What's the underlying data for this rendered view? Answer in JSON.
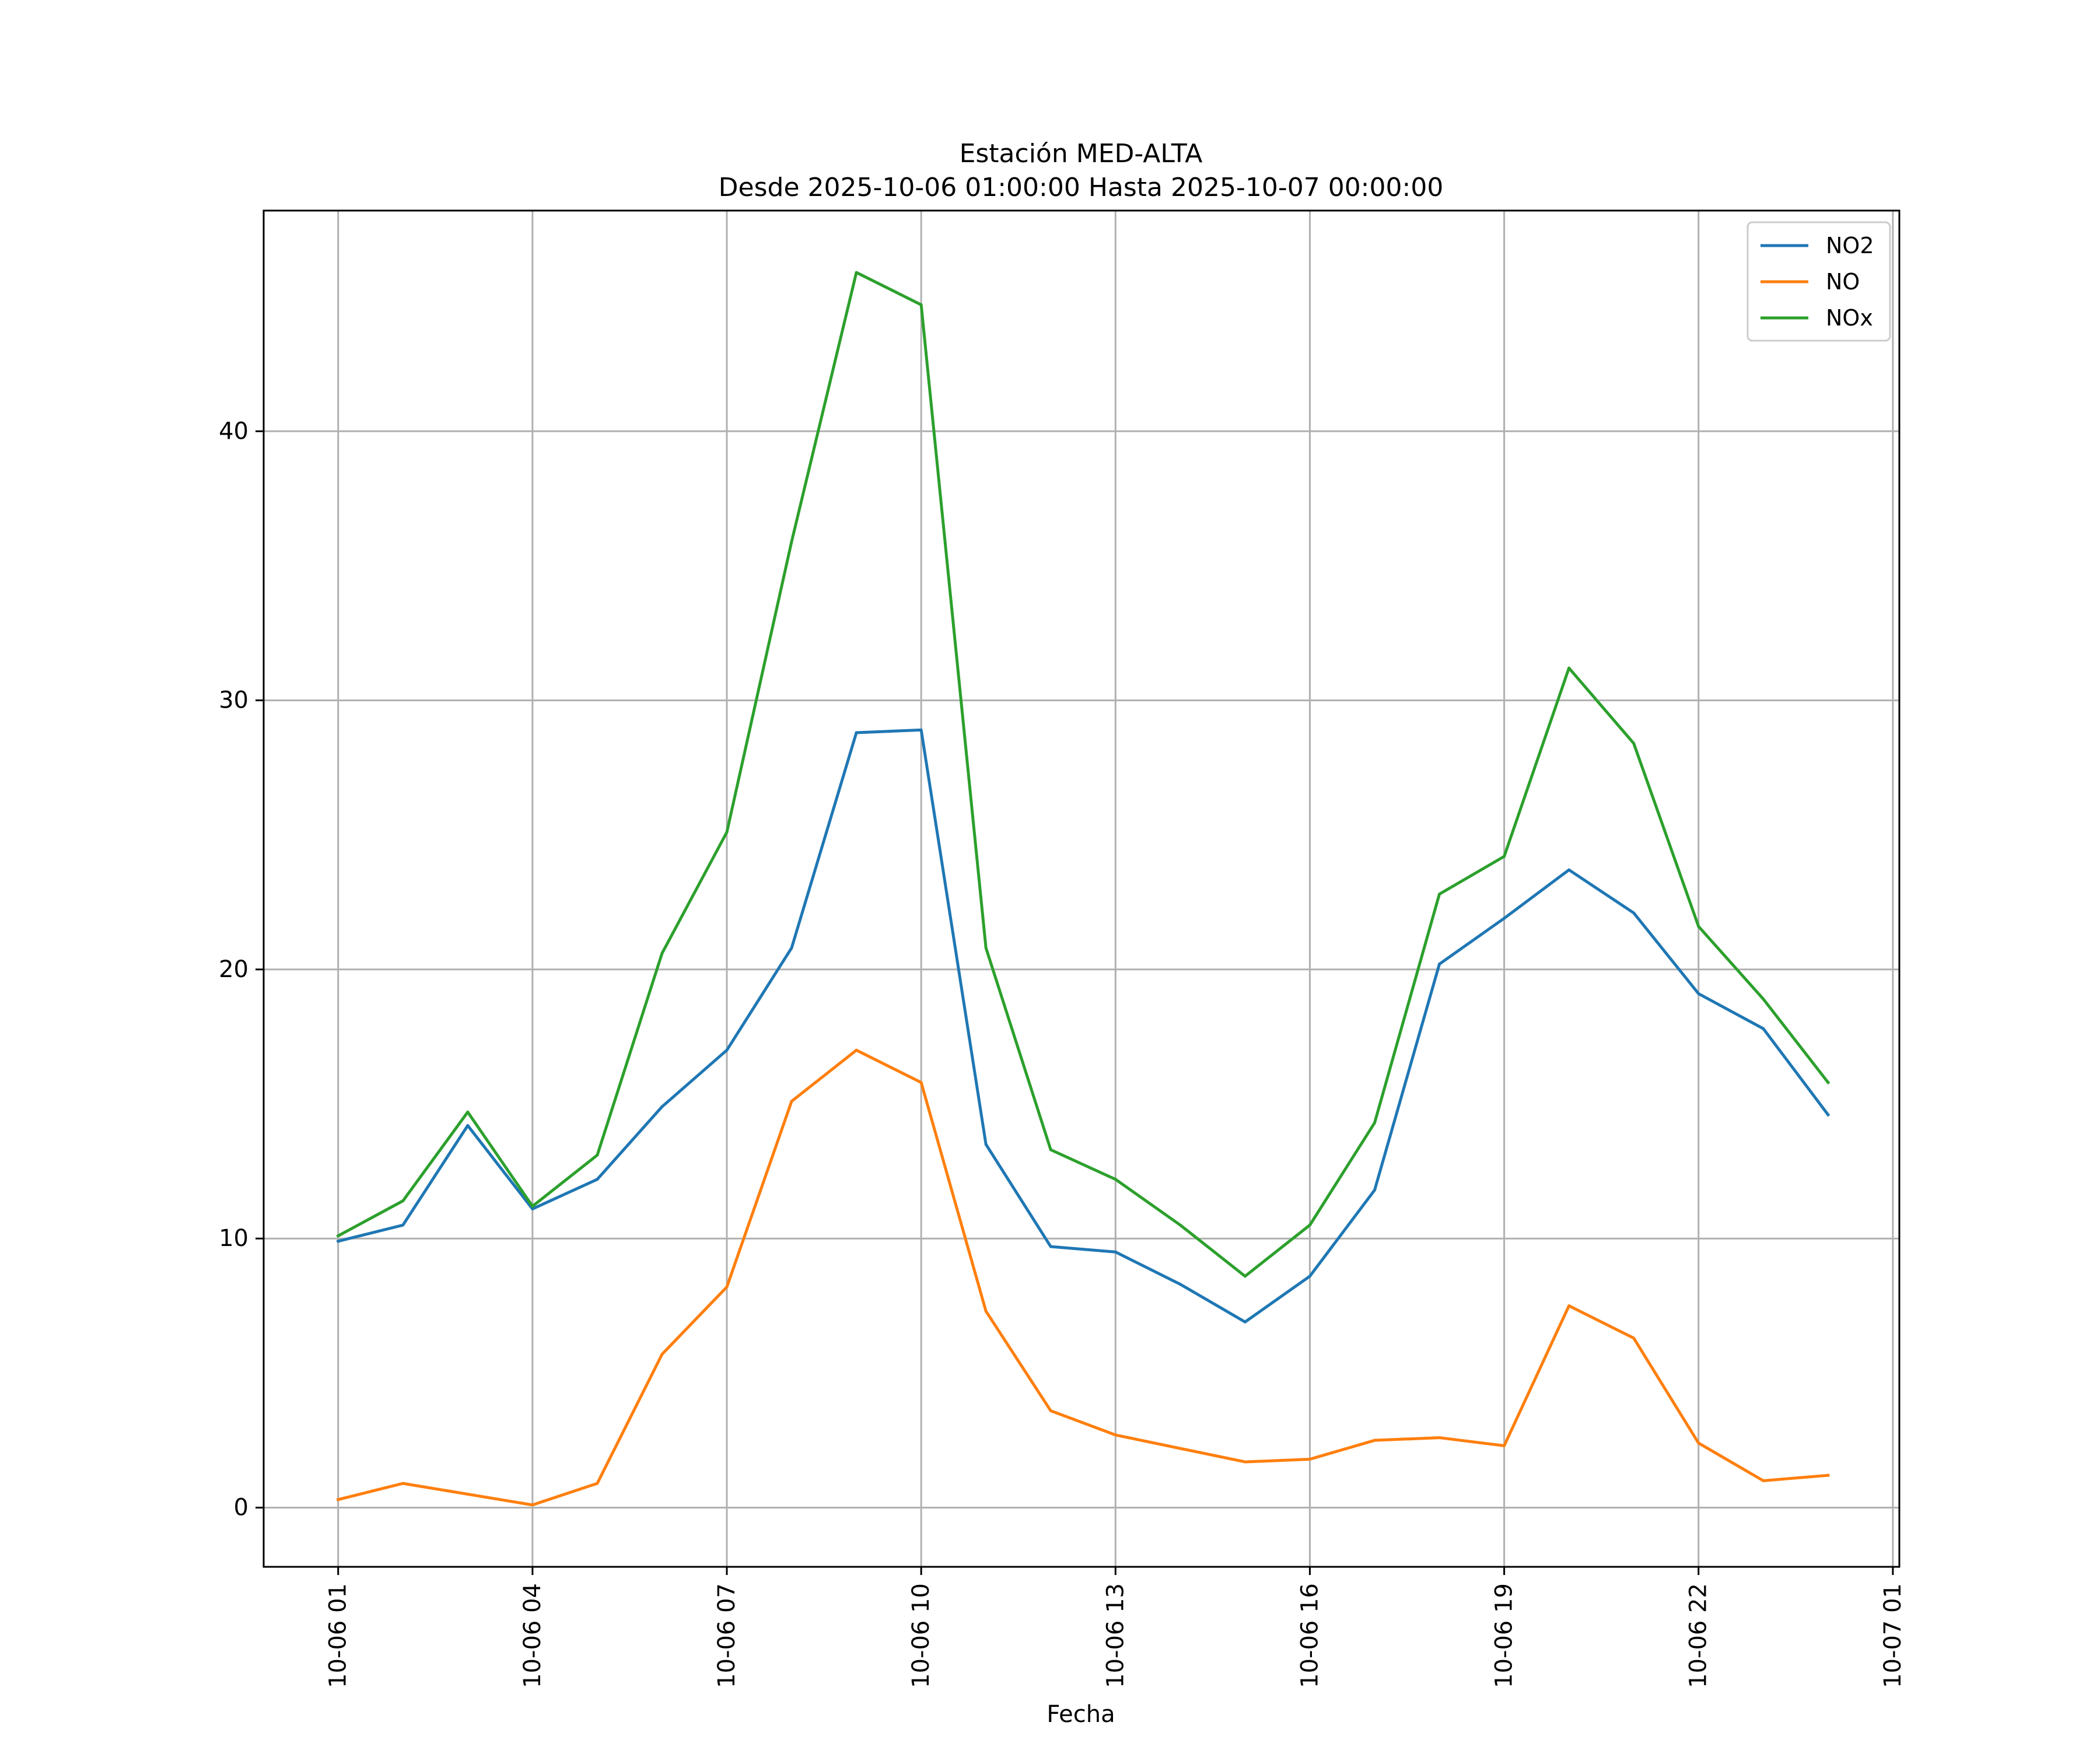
{
  "chart_data": {
    "type": "line",
    "title": "Estación MED-ALTA",
    "subtitle": "Desde 2025-10-06 01:00:00 Hasta 2025-10-07 00:00:00",
    "xlabel": "Fecha",
    "ylabel": "",
    "x_hours": [
      1,
      2,
      3,
      4,
      5,
      6,
      7,
      8,
      9,
      10,
      11,
      12,
      13,
      14,
      15,
      16,
      17,
      18,
      19,
      20,
      21,
      22,
      23,
      24
    ],
    "xlim": [
      -0.15,
      25.1
    ],
    "ylim": [
      -2.2,
      48.2
    ],
    "x_ticks": [
      {
        "hour": 1,
        "label": "10-06 01"
      },
      {
        "hour": 4,
        "label": "10-06 04"
      },
      {
        "hour": 7,
        "label": "10-06 07"
      },
      {
        "hour": 10,
        "label": "10-06 10"
      },
      {
        "hour": 13,
        "label": "10-06 13"
      },
      {
        "hour": 16,
        "label": "10-06 16"
      },
      {
        "hour": 19,
        "label": "10-06 19"
      },
      {
        "hour": 22,
        "label": "10-06 22"
      },
      {
        "hour": 25,
        "label": "10-07 01"
      }
    ],
    "y_ticks": [
      {
        "value": 0,
        "label": "0"
      },
      {
        "value": 10,
        "label": "10"
      },
      {
        "value": 20,
        "label": "20"
      },
      {
        "value": 30,
        "label": "30"
      },
      {
        "value": 40,
        "label": "40"
      }
    ],
    "grid": true,
    "legend_position": "top-right",
    "series": [
      {
        "name": "NO2",
        "color": "#1f77b4",
        "values": [
          9.9,
          10.5,
          14.2,
          11.1,
          12.2,
          14.9,
          17.0,
          20.8,
          28.8,
          28.9,
          13.5,
          9.7,
          9.5,
          8.3,
          6.9,
          8.6,
          11.8,
          20.2,
          21.9,
          23.7,
          22.1,
          19.1,
          17.8,
          14.6
        ]
      },
      {
        "name": "NO",
        "color": "#ff7f0e",
        "values": [
          0.3,
          0.9,
          0.5,
          0.1,
          0.9,
          5.7,
          8.2,
          15.1,
          17.0,
          15.8,
          7.3,
          3.6,
          2.7,
          2.2,
          1.7,
          1.8,
          2.5,
          2.6,
          2.3,
          7.5,
          6.3,
          2.4,
          1.0,
          1.2
        ]
      },
      {
        "name": "NOx",
        "color": "#2ca02c",
        "values": [
          10.1,
          11.4,
          14.7,
          11.2,
          13.1,
          20.6,
          25.1,
          35.9,
          45.9,
          44.7,
          20.8,
          13.3,
          12.2,
          10.5,
          8.6,
          10.5,
          14.3,
          22.8,
          24.2,
          31.2,
          28.4,
          21.6,
          18.9,
          15.8
        ]
      }
    ]
  }
}
